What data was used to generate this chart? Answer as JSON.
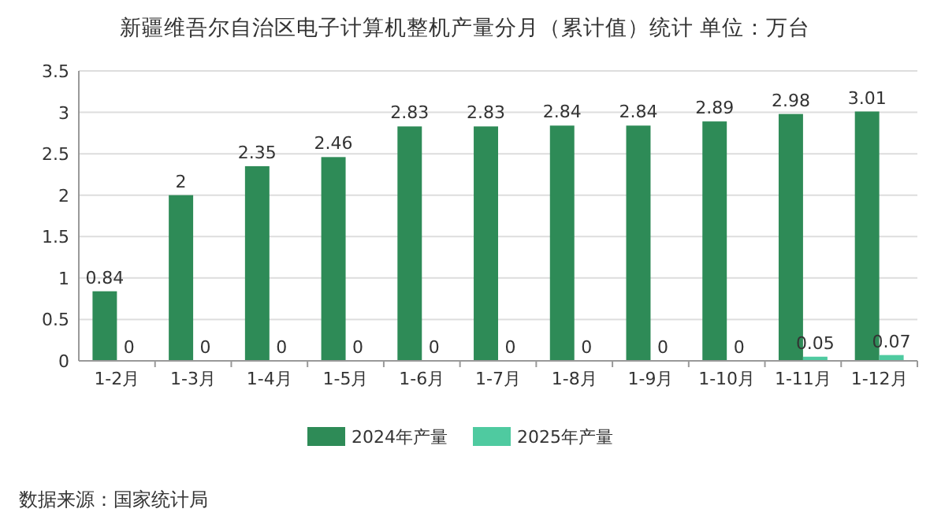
{
  "chart_data": {
    "type": "bar",
    "title": "新疆维吾尔自治区电子计算机整机产量分月（累计值）统计  单位：万台",
    "categories": [
      "1-2月",
      "1-3月",
      "1-4月",
      "1-5月",
      "1-6月",
      "1-7月",
      "1-8月",
      "1-9月",
      "1-10月",
      "1-11月",
      "1-12月"
    ],
    "series": [
      {
        "name": "2024年产量",
        "color": "#2e8b57",
        "values": [
          0.84,
          2,
          2.35,
          2.46,
          2.83,
          2.83,
          2.84,
          2.84,
          2.89,
          2.98,
          3.01
        ]
      },
      {
        "name": "2025年产量",
        "color": "#4fcaa0",
        "values": [
          0,
          0,
          0,
          0,
          0,
          0,
          0,
          0,
          0,
          0.05,
          0.07
        ]
      }
    ],
    "ylim": [
      0,
      3.5
    ],
    "yticks": [
      0,
      0.5,
      1,
      1.5,
      2,
      2.5,
      3,
      3.5
    ],
    "grid": "y",
    "legend": "bottom",
    "data_labels": true,
    "annotations": [
      "数据来源：国家统计局"
    ]
  }
}
